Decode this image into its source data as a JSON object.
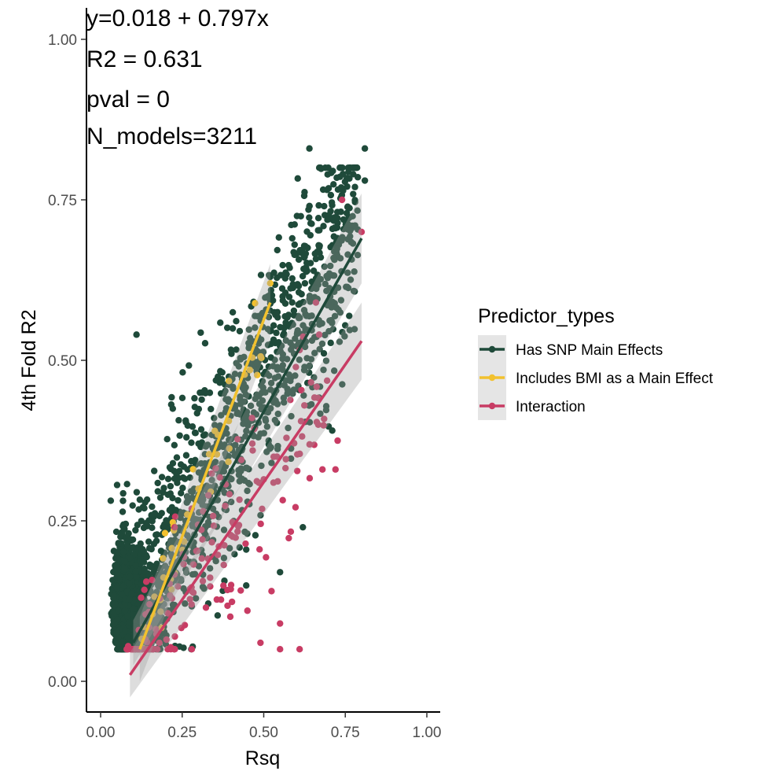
{
  "chart_data": {
    "type": "scatter",
    "xlabel": "Rsq",
    "ylabel": "4th Fold R2",
    "xlim": [
      -0.05,
      1.03
    ],
    "ylim": [
      -0.05,
      1.04
    ],
    "x_ticks": [
      "0.00",
      "0.25",
      "0.50",
      "0.75",
      "1.00"
    ],
    "y_ticks": [
      "0.00",
      "0.25",
      "0.50",
      "0.75",
      "1.00"
    ],
    "x_tick_values": [
      0,
      0.25,
      0.5,
      0.75,
      1.0
    ],
    "y_tick_values": [
      0,
      0.25,
      0.5,
      0.75,
      1.0
    ],
    "grid": false,
    "legend_position": "right",
    "annotations": [
      "y=0.018 + 0.797x",
      "R2 = 0.631",
      "pval = 0",
      "N_models=3211"
    ],
    "legend": {
      "title": "Predictor_types",
      "entries": [
        {
          "label": "Has SNP Main Effects",
          "color": "#1f4a3a"
        },
        {
          "label": "Includes BMI as a Main Effect",
          "color": "#f2c12e"
        },
        {
          "label": "Interaction",
          "color": "#c83c64"
        }
      ]
    },
    "series": [
      {
        "name": "Has SNP Main Effects",
        "color": "#1f4a3a",
        "points_count_estimate": 3000,
        "x_range": [
          0.03,
          0.81
        ],
        "y_range": [
          0.05,
          0.83
        ],
        "fit": {
          "x": [
            0.1,
            0.8
          ],
          "y": [
            0.06,
            0.69
          ]
        },
        "highlight_points": [
          [
            0.64,
            0.83
          ],
          [
            0.81,
            0.83
          ],
          [
            0.81,
            0.78
          ],
          [
            0.64,
            0.74
          ],
          [
            0.62,
            0.24
          ],
          [
            0.55,
            0.17
          ],
          [
            0.11,
            0.54
          ],
          [
            0.52,
            0.63
          ],
          [
            0.78,
            0.71
          ]
        ]
      },
      {
        "name": "Includes BMI as a Main Effect",
        "color": "#f2c12e",
        "fit": {
          "x": [
            0.12,
            0.52
          ],
          "y": [
            0.05,
            0.59
          ]
        },
        "highlight_points": [
          [
            0.52,
            0.62
          ],
          [
            0.3,
            0.3
          ]
        ]
      },
      {
        "name": "Interaction",
        "color": "#c83c64",
        "fit": {
          "x": [
            0.09,
            0.8
          ],
          "y": [
            0.01,
            0.53
          ]
        },
        "highlight_points": [
          [
            0.74,
            0.75
          ],
          [
            0.8,
            0.7
          ],
          [
            0.61,
            0.05
          ],
          [
            0.55,
            0.05
          ],
          [
            0.49,
            0.06
          ],
          [
            0.68,
            0.33
          ],
          [
            0.72,
            0.33
          ],
          [
            0.67,
            0.54
          ],
          [
            0.66,
            0.59
          ],
          [
            0.45,
            0.11
          ],
          [
            0.55,
            0.09
          ],
          [
            0.4,
            0.15
          ],
          [
            0.15,
            0.12
          ],
          [
            0.18,
            0.06
          ],
          [
            0.08,
            0.05
          ]
        ]
      }
    ]
  }
}
